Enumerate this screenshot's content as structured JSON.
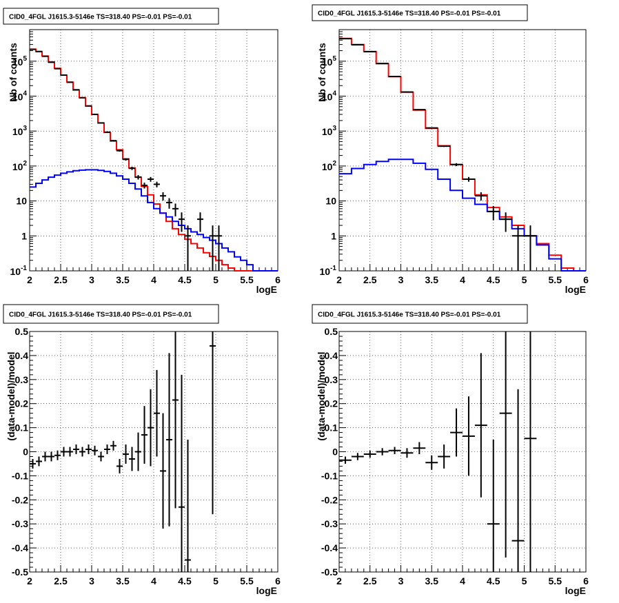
{
  "chart_data": [
    {
      "type": "histogram",
      "title": "CID0_4FGL J1615.3-5146e TS=318.40 PS=-0.01 PS=-0.01",
      "xlabel": "logE",
      "ylabel": "Nb of counts",
      "xlim": [
        2,
        6
      ],
      "ylim": [
        0.1,
        800000
      ],
      "log_y": true,
      "grid": true,
      "x_ticks": [
        "2",
        "2.5",
        "3",
        "3.5",
        "4",
        "4.5",
        "5",
        "5.5",
        "6"
      ],
      "y_ticks": [
        {
          "label": "10^-1",
          "value": 0.1
        },
        {
          "label": "1",
          "value": 1
        },
        {
          "label": "10",
          "value": 10
        },
        {
          "label": "10^2",
          "value": 100
        },
        {
          "label": "10^3",
          "value": 1000
        },
        {
          "label": "10^4",
          "value": 10000
        },
        {
          "label": "10^5",
          "value": 100000
        }
      ],
      "bin_edges": [
        2.0,
        2.1,
        2.2,
        2.3,
        2.4,
        2.5,
        2.6,
        2.7,
        2.8,
        2.9,
        3.0,
        3.1,
        3.2,
        3.3,
        3.4,
        3.5,
        3.6,
        3.7,
        3.8,
        3.9,
        4.0,
        4.1,
        4.2,
        4.3,
        4.4,
        4.5,
        4.6,
        4.7,
        4.8,
        4.9,
        5.0,
        5.1,
        5.2,
        5.3,
        5.4,
        5.5,
        5.6,
        5.7,
        5.8,
        5.9,
        6.0
      ],
      "series": [
        {
          "color": "#ff0000",
          "values": [
            220000,
            190000,
            140000,
            95000,
            62000,
            40000,
            25000,
            15000,
            9000,
            5200,
            3000,
            1700,
            920,
            520,
            290,
            160,
            88,
            48,
            26,
            15,
            8.2,
            4.5,
            2.6,
            1.6,
            1.1,
            0.8,
            0.6,
            0.45,
            0.33,
            0.26,
            0.2,
            0.15,
            0.12,
            0.1,
            0.1,
            0.1,
            0.1,
            0.1,
            0.1,
            0.1
          ]
        },
        {
          "color": "#0000ff",
          "values": [
            25,
            32,
            40,
            48,
            55,
            62,
            68,
            73,
            76,
            78,
            78,
            75,
            70,
            62,
            52,
            42,
            32,
            22,
            14,
            9,
            6,
            4.5,
            3.5,
            2.6,
            2,
            1.6,
            1.3,
            1.1,
            0.9,
            0.75,
            0.6,
            0.45,
            0.35,
            0.25,
            0.2,
            0.15,
            0.1,
            0.1,
            0.1,
            0.1
          ]
        }
      ],
      "points": [
        {
          "x": 2.05,
          "y": 218000,
          "err": 470
        },
        {
          "x": 2.15,
          "y": 189000,
          "err": 435
        },
        {
          "x": 2.25,
          "y": 138000,
          "err": 370
        },
        {
          "x": 2.35,
          "y": 93000,
          "err": 305
        },
        {
          "x": 2.45,
          "y": 61000,
          "err": 247
        },
        {
          "x": 2.55,
          "y": 40000,
          "err": 200
        },
        {
          "x": 2.65,
          "y": 25000,
          "err": 158
        },
        {
          "x": 2.75,
          "y": 15200,
          "err": 123
        },
        {
          "x": 2.85,
          "y": 9000,
          "err": 95
        },
        {
          "x": 2.95,
          "y": 5250,
          "err": 72
        },
        {
          "x": 3.05,
          "y": 3010,
          "err": 55
        },
        {
          "x": 3.15,
          "y": 1710,
          "err": 41
        },
        {
          "x": 3.25,
          "y": 930,
          "err": 30
        },
        {
          "x": 3.35,
          "y": 530,
          "err": 23
        },
        {
          "x": 3.45,
          "y": 275,
          "err": 17
        },
        {
          "x": 3.55,
          "y": 155,
          "err": 12
        },
        {
          "x": 3.65,
          "y": 86,
          "err": 9
        },
        {
          "x": 3.75,
          "y": 48,
          "err": 7
        },
        {
          "x": 3.85,
          "y": 28,
          "err": 5.3
        },
        {
          "x": 3.95,
          "y": 42,
          "err": 6.5
        },
        {
          "x": 4.05,
          "y": 30,
          "err": 5.5
        },
        {
          "x": 4.15,
          "y": 14,
          "err": 3.7
        },
        {
          "x": 4.25,
          "y": 9,
          "err": 3
        },
        {
          "x": 4.35,
          "y": 6,
          "err": 2.4
        },
        {
          "x": 4.45,
          "y": 3,
          "err": 1.7
        },
        {
          "x": 4.55,
          "y": 1,
          "err": 0.99
        },
        {
          "x": 4.75,
          "y": 3,
          "err": 1.7
        },
        {
          "x": 4.95,
          "y": 1,
          "err": 0.99
        },
        {
          "x": 5.05,
          "y": 1,
          "err": 0.99
        }
      ]
    },
    {
      "type": "histogram",
      "title": "CID0_4FGL J1615.3-5146e TS=318.40 PS=-0.01 PS=-0.01",
      "xlabel": "logE",
      "ylabel": "Nb of counts",
      "xlim": [
        2,
        6
      ],
      "ylim": [
        0.1,
        800000
      ],
      "log_y": true,
      "grid": true,
      "x_ticks": [
        "2",
        "2.5",
        "3",
        "3.5",
        "4",
        "4.5",
        "5",
        "5.5",
        "6"
      ],
      "y_ticks": [
        {
          "label": "10^-1",
          "value": 0.1
        },
        {
          "label": "1",
          "value": 1
        },
        {
          "label": "10",
          "value": 10
        },
        {
          "label": "10^2",
          "value": 100
        },
        {
          "label": "10^3",
          "value": 1000
        },
        {
          "label": "10^4",
          "value": 10000
        },
        {
          "label": "10^5",
          "value": 100000
        }
      ],
      "bin_edges": [
        2.0,
        2.2,
        2.4,
        2.6,
        2.8,
        3.0,
        3.2,
        3.4,
        3.6,
        3.8,
        4.0,
        4.2,
        4.4,
        4.6,
        4.8,
        5.0,
        5.2,
        5.4,
        5.6,
        5.8,
        6.0
      ],
      "series": [
        {
          "color": "#ff0000",
          "values": [
            450000,
            300000,
            190000,
            85000,
            36000,
            13000,
            4000,
            1200,
            380,
            110,
            42,
            15,
            6.5,
            3.5,
            2,
            1,
            0.6,
            0.28,
            0.12,
            0.1
          ]
        },
        {
          "color": "#0000ff",
          "values": [
            60,
            85,
            110,
            135,
            155,
            155,
            120,
            80,
            42,
            20,
            12,
            8,
            5,
            3,
            1.6,
            1,
            0.55,
            0.22,
            0.1,
            0.1
          ]
        }
      ],
      "points": [
        {
          "x": 2.1,
          "y": 440000,
          "err": 660
        },
        {
          "x": 2.3,
          "y": 295000,
          "err": 540
        },
        {
          "x": 2.5,
          "y": 187000,
          "err": 430
        },
        {
          "x": 2.7,
          "y": 86000,
          "err": 290
        },
        {
          "x": 2.9,
          "y": 36500,
          "err": 190
        },
        {
          "x": 3.1,
          "y": 13100,
          "err": 115
        },
        {
          "x": 3.3,
          "y": 4100,
          "err": 64
        },
        {
          "x": 3.5,
          "y": 1230,
          "err": 35
        },
        {
          "x": 3.7,
          "y": 370,
          "err": 19
        },
        {
          "x": 3.9,
          "y": 110,
          "err": 10.5
        },
        {
          "x": 4.1,
          "y": 42,
          "err": 6.5
        },
        {
          "x": 4.3,
          "y": 14,
          "err": 3.7
        },
        {
          "x": 4.5,
          "y": 5,
          "err": 2.2
        },
        {
          "x": 4.7,
          "y": 3,
          "err": 1.7
        },
        {
          "x": 4.9,
          "y": 1,
          "err": 0.99
        },
        {
          "x": 5.1,
          "y": 1,
          "err": 0.99
        }
      ]
    },
    {
      "type": "scatter",
      "title": "CID0_4FGL J1615.3-5146e TS=318.40 PS=-0.01 PS=-0.01",
      "xlabel": "logE",
      "ylabel": "(data-model)/model",
      "xlim": [
        2,
        6
      ],
      "ylim": [
        -0.5,
        0.5
      ],
      "grid": true,
      "x_ticks": [
        "2",
        "2.5",
        "3",
        "3.5",
        "4",
        "4.5",
        "5",
        "5.5",
        "6"
      ],
      "y_ticks": [
        "-0.5",
        "-0.4",
        "-0.3",
        "-0.2",
        "-0.1",
        "0",
        "0.1",
        "0.2",
        "0.3",
        "0.4",
        "0.5"
      ],
      "xerr": 0.05,
      "points": [
        {
          "x": 2.05,
          "y": -0.05,
          "err": 0.02
        },
        {
          "x": 2.15,
          "y": -0.04,
          "err": 0.02
        },
        {
          "x": 2.25,
          "y": -0.02,
          "err": 0.02
        },
        {
          "x": 2.35,
          "y": -0.02,
          "err": 0.02
        },
        {
          "x": 2.45,
          "y": -0.015,
          "err": 0.02
        },
        {
          "x": 2.55,
          "y": 0,
          "err": 0.02
        },
        {
          "x": 2.65,
          "y": 0,
          "err": 0.02
        },
        {
          "x": 2.75,
          "y": 0.01,
          "err": 0.02
        },
        {
          "x": 2.85,
          "y": 0,
          "err": 0.02
        },
        {
          "x": 2.95,
          "y": 0.01,
          "err": 0.02
        },
        {
          "x": 3.05,
          "y": 0.005,
          "err": 0.02
        },
        {
          "x": 3.15,
          "y": -0.02,
          "err": 0.02
        },
        {
          "x": 3.25,
          "y": 0.01,
          "err": 0.02
        },
        {
          "x": 3.35,
          "y": 0.025,
          "err": 0.02
        },
        {
          "x": 3.45,
          "y": -0.06,
          "err": 0.03
        },
        {
          "x": 3.55,
          "y": -0.01,
          "err": 0.04
        },
        {
          "x": 3.65,
          "y": -0.03,
          "err": 0.05
        },
        {
          "x": 3.75,
          "y": 0,
          "err": 0.08
        },
        {
          "x": 3.85,
          "y": 0.07,
          "err": 0.12
        },
        {
          "x": 3.95,
          "y": 0.1,
          "err": 0.16
        },
        {
          "x": 4.05,
          "y": 0.16,
          "err": 0.18
        },
        {
          "x": 4.15,
          "y": -0.08,
          "err": 0.24
        },
        {
          "x": 4.25,
          "y": 0.05,
          "err": 0.36
        },
        {
          "x": 4.35,
          "y": 0.215,
          "err": 0.45
        },
        {
          "x": 4.45,
          "y": -0.23,
          "err": 0.55
        },
        {
          "x": 4.55,
          "y": -0.45,
          "err": 0.5
        },
        {
          "x": 4.95,
          "y": 0.44,
          "err": 0.7
        }
      ]
    },
    {
      "type": "scatter",
      "title": "CID0_4FGL J1615.3-5146e TS=318.40 PS=-0.01 PS=-0.01",
      "xlabel": "logE",
      "ylabel": "(data-model)/model",
      "xlim": [
        2,
        6
      ],
      "ylim": [
        -0.5,
        0.5
      ],
      "grid": true,
      "x_ticks": [
        "2",
        "2.5",
        "3",
        "3.5",
        "4",
        "4.5",
        "5",
        "5.5",
        "6"
      ],
      "y_ticks": [
        "-0.5",
        "-0.4",
        "-0.3",
        "-0.2",
        "-0.1",
        "0",
        "0.1",
        "0.2",
        "0.3",
        "0.4",
        "0.5"
      ],
      "xerr": 0.1,
      "points": [
        {
          "x": 2.1,
          "y": -0.035,
          "err": 0.015
        },
        {
          "x": 2.3,
          "y": -0.02,
          "err": 0.015
        },
        {
          "x": 2.5,
          "y": -0.01,
          "err": 0.015
        },
        {
          "x": 2.7,
          "y": 0,
          "err": 0.015
        },
        {
          "x": 2.9,
          "y": 0.005,
          "err": 0.015
        },
        {
          "x": 3.1,
          "y": -0.005,
          "err": 0.02
        },
        {
          "x": 3.3,
          "y": 0.015,
          "err": 0.025
        },
        {
          "x": 3.5,
          "y": -0.045,
          "err": 0.03
        },
        {
          "x": 3.7,
          "y": -0.02,
          "err": 0.05
        },
        {
          "x": 3.9,
          "y": 0.08,
          "err": 0.1
        },
        {
          "x": 4.1,
          "y": 0.065,
          "err": 0.165
        },
        {
          "x": 4.3,
          "y": 0.11,
          "err": 0.3
        },
        {
          "x": 4.5,
          "y": -0.3,
          "err": 0.35
        },
        {
          "x": 4.7,
          "y": 0.16,
          "err": 0.6
        },
        {
          "x": 4.9,
          "y": -0.37,
          "err": 0.63
        },
        {
          "x": 5.1,
          "y": 0.055,
          "err": 0.7
        }
      ]
    }
  ]
}
